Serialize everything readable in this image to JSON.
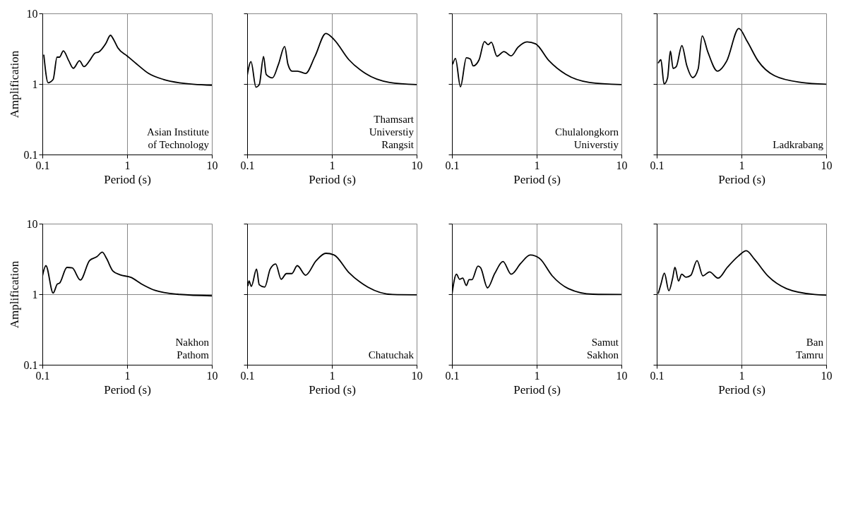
{
  "chart_data": [
    {
      "type": "line",
      "xlabel": "Period (s)",
      "ylabel": "Amplification",
      "annotations": [
        "Asian Institute\nof Technology"
      ],
      "log": "xy",
      "grid": true,
      "xlim": [
        0.1,
        10
      ],
      "ylim": [
        0.1,
        10
      ],
      "xticks": [
        0.1,
        1,
        10
      ],
      "yticks": [
        0.1,
        1,
        10
      ],
      "x": [
        0.104,
        0.117,
        0.134,
        0.149,
        0.159,
        0.177,
        0.205,
        0.232,
        0.274,
        0.31,
        0.36,
        0.416,
        0.465,
        0.56,
        0.636,
        0.69,
        0.78,
        1.0,
        1.29,
        1.79,
        2.68,
        4.15,
        10
      ],
      "series": [
        {
          "color": "#000000",
          "values": [
            2.6,
            1.04,
            1.16,
            2.4,
            2.4,
            2.94,
            2.13,
            1.67,
            2.13,
            1.76,
            2.13,
            2.73,
            2.85,
            3.74,
            4.9,
            4.3,
            3.23,
            2.5,
            1.93,
            1.41,
            1.16,
            1.04,
            0.96
          ]
        }
      ]
    },
    {
      "type": "line",
      "xlabel": "Period (s)",
      "annotations": [
        "Thamsart\nUniverstiy\nRangsit"
      ],
      "log": "xy",
      "grid": true,
      "tick_labels": "x",
      "xlim": [
        0.1,
        10
      ],
      "ylim": [
        0.1,
        10
      ],
      "xticks": [
        0.1,
        1,
        10
      ],
      "yticks": [
        0.1,
        1,
        10
      ],
      "x": [
        0.1,
        0.111,
        0.127,
        0.139,
        0.156,
        0.168,
        0.199,
        0.234,
        0.277,
        0.303,
        0.339,
        0.392,
        0.489,
        0.63,
        0.85,
        1.06,
        1.59,
        2.48,
        4.8,
        10
      ],
      "series": [
        {
          "color": "#000000",
          "values": [
            1.31,
            2.07,
            0.9,
            0.98,
            2.45,
            1.36,
            1.22,
            1.9,
            3.4,
            1.9,
            1.52,
            1.52,
            1.41,
            2.45,
            5.2,
            4.26,
            2.2,
            1.41,
            1.05,
            0.98
          ]
        }
      ]
    },
    {
      "type": "line",
      "xlabel": "Period (s)",
      "annotations": [
        "Chulalongkorn\nUniverstiy"
      ],
      "log": "xy",
      "grid": true,
      "tick_labels": "x",
      "xlim": [
        0.1,
        10
      ],
      "ylim": [
        0.1,
        10
      ],
      "xticks": [
        0.1,
        1,
        10
      ],
      "yticks": [
        0.1,
        1,
        10
      ],
      "x": [
        0.102,
        0.11,
        0.126,
        0.148,
        0.165,
        0.178,
        0.209,
        0.242,
        0.267,
        0.292,
        0.34,
        0.41,
        0.5,
        0.6,
        0.77,
        0.97,
        1.4,
        2.2,
        4.2,
        10
      ],
      "series": [
        {
          "color": "#000000",
          "values": [
            1.9,
            2.3,
            0.91,
            2.35,
            2.25,
            1.8,
            2.2,
            4.0,
            3.6,
            3.9,
            2.47,
            2.88,
            2.5,
            3.3,
            3.95,
            3.7,
            2.13,
            1.37,
            1.05,
            0.98
          ]
        }
      ]
    },
    {
      "type": "line",
      "xlabel": "Period (s)",
      "annotations": [
        "Ladkrabang"
      ],
      "log": "xy",
      "grid": true,
      "tick_labels": "x",
      "xlim": [
        0.1,
        10
      ],
      "ylim": [
        0.1,
        10
      ],
      "xticks": [
        0.1,
        1,
        10
      ],
      "yticks": [
        0.1,
        1,
        10
      ],
      "x": [
        0.104,
        0.112,
        0.122,
        0.134,
        0.145,
        0.156,
        0.17,
        0.198,
        0.226,
        0.266,
        0.308,
        0.344,
        0.4,
        0.52,
        0.67,
        0.93,
        1.17,
        1.57,
        2.45,
        5.1,
        10
      ],
      "series": [
        {
          "color": "#000000",
          "values": [
            1.97,
            2.2,
            1.0,
            1.21,
            2.92,
            1.66,
            1.76,
            3.5,
            1.83,
            1.23,
            1.63,
            4.8,
            2.86,
            1.52,
            2.12,
            6.1,
            4.0,
            2.12,
            1.31,
            1.05,
            0.99
          ]
        }
      ]
    },
    {
      "type": "line",
      "xlabel": "Period (s)",
      "ylabel": "Amplification",
      "annotations": [
        "Nakhon\nPathom"
      ],
      "log": "xy",
      "grid": true,
      "xlim": [
        0.1,
        10
      ],
      "ylim": [
        0.1,
        10
      ],
      "xticks": [
        0.1,
        1,
        10
      ],
      "yticks": [
        0.1,
        1,
        10
      ],
      "x": [
        0.1,
        0.11,
        0.134,
        0.15,
        0.16,
        0.195,
        0.225,
        0.281,
        0.36,
        0.44,
        0.51,
        0.57,
        0.68,
        0.82,
        1.11,
        1.49,
        2.15,
        3.9,
        10
      ],
      "series": [
        {
          "color": "#000000",
          "values": [
            1.8,
            2.54,
            1.04,
            1.39,
            1.44,
            2.4,
            2.36,
            1.59,
            3.0,
            3.4,
            3.94,
            3.23,
            2.13,
            1.89,
            1.73,
            1.39,
            1.13,
            1.0,
            0.95
          ]
        }
      ]
    },
    {
      "type": "line",
      "xlabel": "Period (s)",
      "annotations": [
        "Chatuchak"
      ],
      "log": "xy",
      "grid": true,
      "tick_labels": "x",
      "xlim": [
        0.1,
        10
      ],
      "ylim": [
        0.1,
        10
      ],
      "xticks": [
        0.1,
        1,
        10
      ],
      "yticks": [
        0.1,
        1,
        10
      ],
      "x": [
        0.102,
        0.105,
        0.112,
        0.129,
        0.139,
        0.161,
        0.187,
        0.217,
        0.252,
        0.291,
        0.337,
        0.39,
        0.49,
        0.65,
        0.85,
        1.06,
        1.58,
        2.66,
        5.2,
        10
      ],
      "series": [
        {
          "color": "#000000",
          "values": [
            1.31,
            1.54,
            1.29,
            2.27,
            1.36,
            1.26,
            2.27,
            2.69,
            1.63,
            1.96,
            1.96,
            2.54,
            1.86,
            2.98,
            3.8,
            3.6,
            2.04,
            1.26,
            0.99,
            0.98
          ]
        }
      ]
    },
    {
      "type": "line",
      "xlabel": "Period (s)",
      "annotations": [
        "Samut\nSakhon"
      ],
      "log": "xy",
      "grid": true,
      "tick_labels": "x",
      "xlim": [
        0.1,
        10
      ],
      "ylim": [
        0.1,
        10
      ],
      "xticks": [
        0.1,
        1,
        10
      ],
      "yticks": [
        0.1,
        1,
        10
      ],
      "x": [
        0.1,
        0.113,
        0.123,
        0.134,
        0.148,
        0.159,
        0.172,
        0.203,
        0.218,
        0.263,
        0.32,
        0.4,
        0.5,
        0.65,
        0.84,
        1.09,
        1.52,
        2.37,
        4.6,
        10
      ],
      "series": [
        {
          "color": "#000000",
          "values": [
            1.0,
            1.92,
            1.63,
            1.69,
            1.33,
            1.61,
            1.61,
            2.51,
            2.37,
            1.23,
            1.97,
            2.91,
            1.92,
            2.75,
            3.6,
            3.19,
            1.83,
            1.2,
            1.0,
            0.99
          ]
        }
      ]
    },
    {
      "type": "line",
      "xlabel": "Period (s)",
      "annotations": [
        "Ban\nTamru"
      ],
      "log": "xy",
      "grid": true,
      "tick_labels": "x",
      "xlim": [
        0.1,
        10
      ],
      "ylim": [
        0.1,
        10
      ],
      "xticks": [
        0.1,
        1,
        10
      ],
      "yticks": [
        0.1,
        1,
        10
      ],
      "x": [
        0.104,
        0.112,
        0.123,
        0.139,
        0.154,
        0.164,
        0.181,
        0.197,
        0.222,
        0.252,
        0.299,
        0.35,
        0.42,
        0.53,
        0.68,
        0.92,
        1.14,
        1.43,
        2.08,
        3.4,
        7.3,
        10
      ],
      "series": [
        {
          "color": "#000000",
          "values": [
            1.02,
            1.38,
            1.99,
            1.12,
            1.69,
            2.4,
            1.54,
            1.92,
            1.74,
            1.85,
            3.0,
            1.82,
            2.07,
            1.69,
            2.4,
            3.48,
            4.13,
            3.11,
            1.78,
            1.2,
            0.99,
            0.97
          ]
        }
      ]
    }
  ]
}
